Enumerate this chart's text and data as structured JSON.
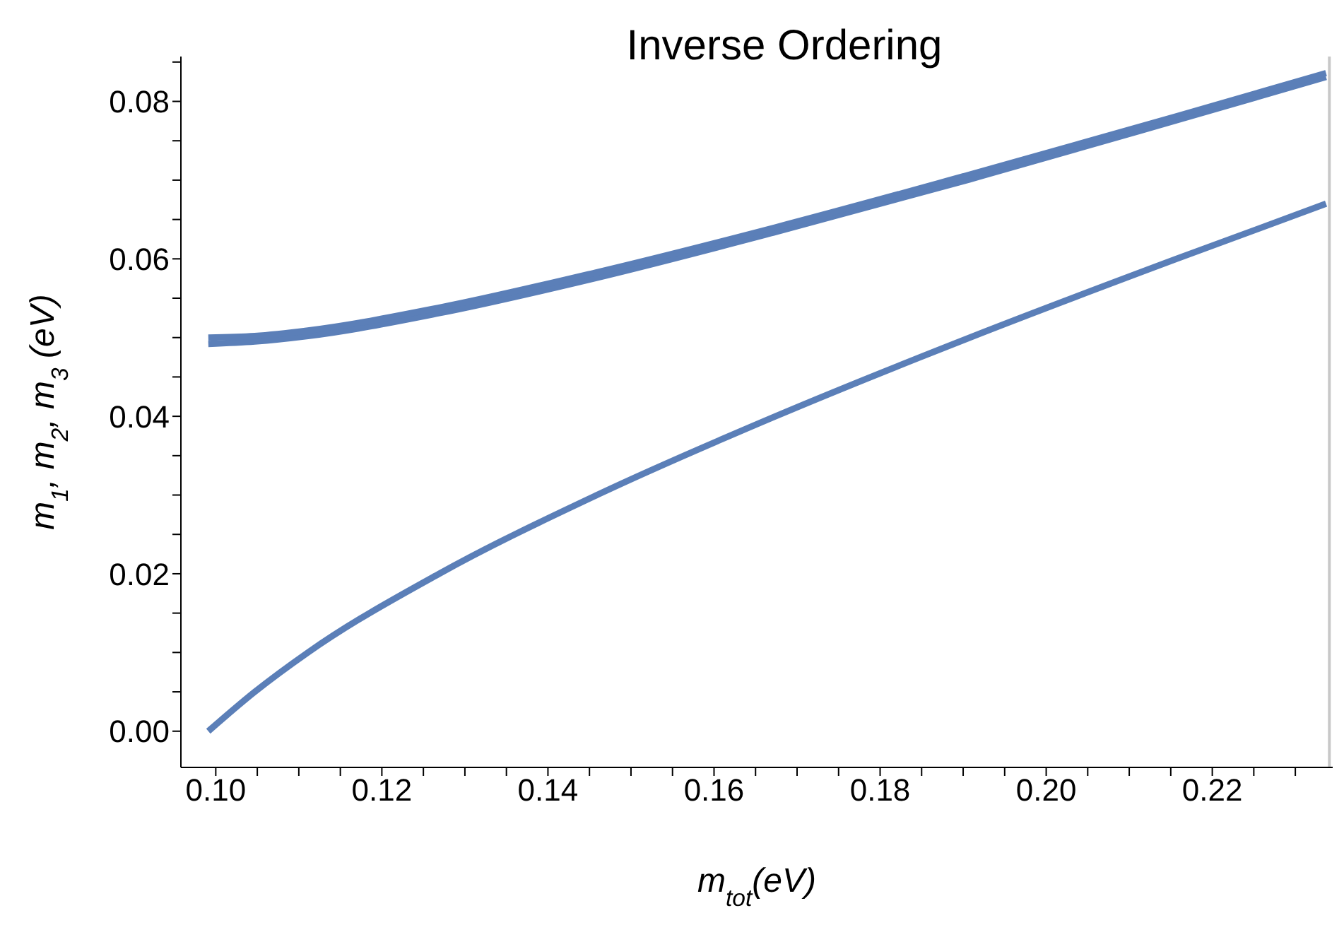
{
  "chart_data": {
    "type": "line",
    "title": "Inverse Ordering",
    "xlabel": "m$_{tot}$(eV)",
    "ylabel": "m$_{1}$, m$_{2}$, m$_{3}$ (eV)",
    "x": [
      0.0991,
      0.1047,
      0.1111,
      0.1269,
      0.1459,
      0.1674,
      0.1908,
      0.2157,
      0.2337
    ],
    "series": [
      {
        "color": "#5b7fb8",
        "values": [
          0.0492,
          0.0495,
          0.0502,
          0.0531,
          0.0576,
          0.0634,
          0.0701,
          0.0776,
          0.0831
        ]
      },
      {
        "color": "#5b7fb8",
        "values": [
          0.05,
          0.0502,
          0.0509,
          0.0538,
          0.0583,
          0.064,
          0.0707,
          0.0781,
          0.0836
        ]
      },
      {
        "color": "#5b7fb8",
        "values": [
          0,
          0.005,
          0.01,
          0.02,
          0.03,
          0.04,
          0.05,
          0.06,
          0.067
        ]
      }
    ],
    "xlim": [
      0.0958,
      0.2345
    ],
    "ylim": [
      -0.0046,
      0.0857
    ],
    "xticks": [
      {
        "value": 0.1,
        "label": "0.10"
      },
      {
        "value": 0.105,
        "label": null
      },
      {
        "value": 0.11,
        "label": null
      },
      {
        "value": 0.115,
        "label": null
      },
      {
        "value": 0.12,
        "label": "0.12"
      },
      {
        "value": 0.125,
        "label": null
      },
      {
        "value": 0.13,
        "label": null
      },
      {
        "value": 0.135,
        "label": null
      },
      {
        "value": 0.14,
        "label": "0.14"
      },
      {
        "value": 0.145,
        "label": null
      },
      {
        "value": 0.15,
        "label": null
      },
      {
        "value": 0.155,
        "label": null
      },
      {
        "value": 0.16,
        "label": "0.16"
      },
      {
        "value": 0.165,
        "label": null
      },
      {
        "value": 0.17,
        "label": null
      },
      {
        "value": 0.175,
        "label": null
      },
      {
        "value": 0.18,
        "label": "0.18"
      },
      {
        "value": 0.185,
        "label": null
      },
      {
        "value": 0.19,
        "label": null
      },
      {
        "value": 0.195,
        "label": null
      },
      {
        "value": 0.2,
        "label": "0.20"
      },
      {
        "value": 0.205,
        "label": null
      },
      {
        "value": 0.21,
        "label": null
      },
      {
        "value": 0.215,
        "label": null
      },
      {
        "value": 0.22,
        "label": "0.22"
      },
      {
        "value": 0.225,
        "label": null
      },
      {
        "value": 0.23,
        "label": null
      }
    ],
    "yticks": [
      {
        "value": 0,
        "label": "0.00"
      },
      {
        "value": 0.005,
        "label": null
      },
      {
        "value": 0.01,
        "label": null
      },
      {
        "value": 0.015,
        "label": null
      },
      {
        "value": 0.02,
        "label": "0.02"
      },
      {
        "value": 0.025,
        "label": null
      },
      {
        "value": 0.03,
        "label": null
      },
      {
        "value": 0.035,
        "label": null
      },
      {
        "value": 0.04,
        "label": "0.04"
      },
      {
        "value": 0.045,
        "label": null
      },
      {
        "value": 0.05,
        "label": null
      },
      {
        "value": 0.055,
        "label": null
      },
      {
        "value": 0.06,
        "label": "0.06"
      },
      {
        "value": 0.065,
        "label": null
      },
      {
        "value": 0.07,
        "label": null
      },
      {
        "value": 0.075,
        "label": null
      },
      {
        "value": 0.08,
        "label": "0.08"
      },
      {
        "value": 0.085,
        "label": null
      }
    ],
    "ref_lines": [
      {
        "axis": "x",
        "value": 0.2341,
        "color": "#c8c8c8",
        "line_style": "solid"
      }
    ],
    "grid": false,
    "legend": false,
    "marker": "none",
    "line_style": "solid"
  }
}
